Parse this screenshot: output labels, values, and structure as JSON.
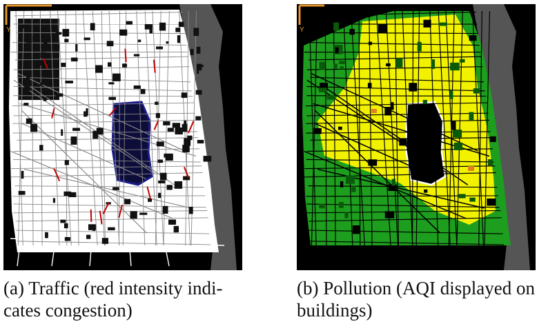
{
  "panels": [
    {
      "id": "a",
      "caption_label": "(a)",
      "caption_text": "Traffic (red intensity indi-cates congestion)",
      "colors": {
        "background": "#000000",
        "roads": "#ffffff",
        "blocks": "#ffffff",
        "water": "#555555",
        "congestion": "#c00000",
        "park": "#0d0d3a",
        "park_outline": "#1a1a8a"
      }
    },
    {
      "id": "b",
      "caption_label": "(b)",
      "caption_text": "Pollution (AQI displayed on buildings)",
      "colors": {
        "background": "#000000",
        "high_aqi": "#f2f200",
        "low_aqi": "#1e9e1e",
        "very_high_aqi": "#e08020",
        "water": "#555555",
        "park": "#000000",
        "park_outline": "#ffffff"
      }
    }
  ],
  "axis_glyph": "Y",
  "axis_color": "#e8952a"
}
